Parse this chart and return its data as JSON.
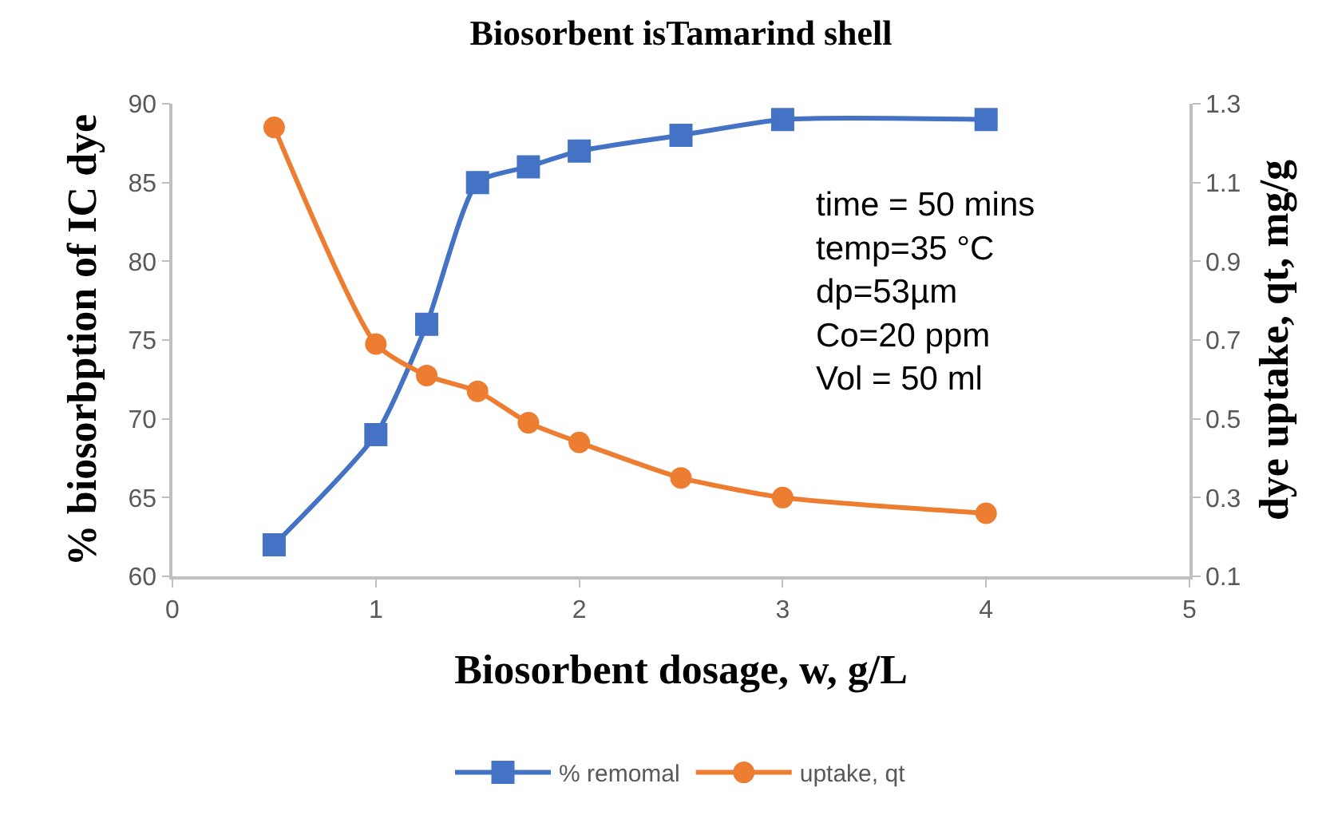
{
  "chart_data": {
    "type": "line",
    "title": "Biosorbent isTamarind shell",
    "xlabel": "Biosorbent dosage, w, g/L",
    "ylabel": "% biosorbption of IC dye",
    "y2label": "dye uptake, qt, mg/g",
    "x": [
      0.5,
      1,
      1.25,
      1.5,
      1.75,
      2,
      2.5,
      3,
      4
    ],
    "series": [
      {
        "name": "% remomal",
        "color": "#4472c4",
        "marker": "square",
        "values": [
          62,
          69,
          76,
          85,
          86,
          87,
          88,
          89,
          89
        ]
      },
      {
        "name": "uptake, qt",
        "color": "#ed7d31",
        "marker": "circle",
        "axis": "y2",
        "values": [
          1.24,
          0.69,
          0.61,
          0.57,
          0.49,
          0.44,
          0.35,
          0.3,
          0.26
        ]
      }
    ],
    "xlim": [
      0,
      5
    ],
    "xticks": [
      0,
      1,
      2,
      3,
      4,
      5
    ],
    "ylim": [
      60,
      90
    ],
    "yticks": [
      60,
      65,
      70,
      75,
      80,
      85,
      90
    ],
    "y2lim": [
      0.1,
      1.3
    ],
    "y2ticks": [
      0.1,
      0.3,
      0.5,
      0.7,
      0.9,
      1.1,
      1.3
    ],
    "annotations": [
      "time = 50 mins\ntemp=35 °C\ndp=53µm\nCo=20 ppm\nVol = 50 ml"
    ],
    "legend": "bottom",
    "line_style": "solid"
  }
}
